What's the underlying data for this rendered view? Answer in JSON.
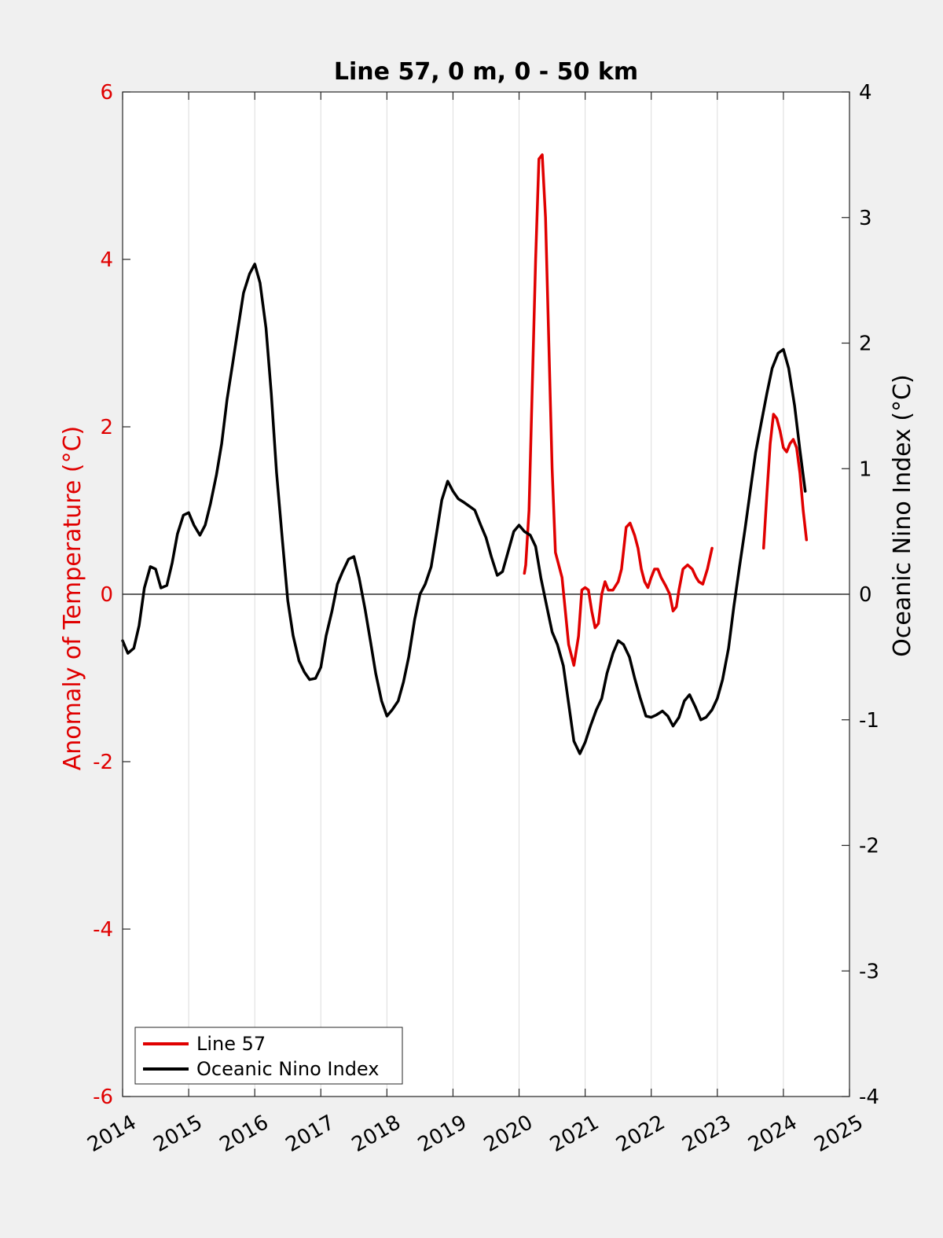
{
  "chart_data": {
    "type": "line",
    "title": "Line 57, 0 m, 0 - 50 km",
    "xlim": [
      2014,
      2025
    ],
    "x_ticks": [
      "2014",
      "2015",
      "2016",
      "2017",
      "2018",
      "2019",
      "2020",
      "2021",
      "2022",
      "2023",
      "2024",
      "2025"
    ],
    "left_axis": {
      "label": "Anomaly of Temperature (°C)",
      "ylim": [
        -6,
        6
      ],
      "ticks": [
        "-6",
        "-4",
        "-2",
        "0",
        "2",
        "4",
        "6"
      ],
      "color": "#e00000"
    },
    "right_axis": {
      "label": "Oceanic Nino Index (°C)",
      "ylim": [
        -4,
        4
      ],
      "ticks": [
        "-4",
        "-3",
        "-2",
        "-1",
        "0",
        "1",
        "2",
        "3",
        "4"
      ],
      "color": "#000000"
    },
    "grid": "vertical",
    "zero_line": true,
    "legend": {
      "position": "bottom-left",
      "entries": [
        {
          "label": "Line 57",
          "color": "#e00000"
        },
        {
          "label": "Oceanic Nino Index",
          "color": "#000000"
        }
      ]
    },
    "series": [
      {
        "name": "Line 57",
        "axis": "left",
        "color": "#e00000",
        "segments": [
          [
            [
              2020.08,
              0.25
            ],
            [
              2020.1,
              0.35
            ],
            [
              2020.15,
              1.0
            ],
            [
              2020.2,
              2.5
            ],
            [
              2020.25,
              4.0
            ],
            [
              2020.3,
              5.2
            ],
            [
              2020.35,
              5.25
            ],
            [
              2020.4,
              4.5
            ],
            [
              2020.45,
              3.0
            ],
            [
              2020.5,
              1.5
            ],
            [
              2020.55,
              0.5
            ],
            [
              2020.6,
              0.35
            ],
            [
              2020.65,
              0.2
            ],
            [
              2020.7,
              -0.2
            ],
            [
              2020.75,
              -0.6
            ],
            [
              2020.83,
              -0.85
            ],
            [
              2020.9,
              -0.5
            ],
            [
              2020.95,
              0.05
            ],
            [
              2021.0,
              0.08
            ],
            [
              2021.05,
              0.05
            ],
            [
              2021.1,
              -0.2
            ],
            [
              2021.15,
              -0.4
            ],
            [
              2021.2,
              -0.35
            ],
            [
              2021.25,
              0.0
            ],
            [
              2021.3,
              0.15
            ],
            [
              2021.35,
              0.05
            ],
            [
              2021.42,
              0.05
            ],
            [
              2021.5,
              0.15
            ],
            [
              2021.55,
              0.3
            ],
            [
              2021.62,
              0.8
            ],
            [
              2021.68,
              0.85
            ],
            [
              2021.75,
              0.7
            ],
            [
              2021.8,
              0.55
            ],
            [
              2021.85,
              0.3
            ],
            [
              2021.9,
              0.15
            ],
            [
              2021.95,
              0.08
            ],
            [
              2022.0,
              0.2
            ],
            [
              2022.05,
              0.3
            ],
            [
              2022.1,
              0.3
            ],
            [
              2022.15,
              0.2
            ],
            [
              2022.22,
              0.1
            ],
            [
              2022.28,
              0.0
            ],
            [
              2022.33,
              -0.2
            ],
            [
              2022.38,
              -0.15
            ],
            [
              2022.42,
              0.05
            ],
            [
              2022.48,
              0.3
            ],
            [
              2022.55,
              0.35
            ],
            [
              2022.62,
              0.3
            ],
            [
              2022.68,
              0.2
            ],
            [
              2022.72,
              0.15
            ],
            [
              2022.78,
              0.12
            ],
            [
              2022.85,
              0.3
            ],
            [
              2022.92,
              0.55
            ]
          ],
          [
            [
              2023.7,
              0.55
            ],
            [
              2023.75,
              1.2
            ],
            [
              2023.8,
              1.8
            ],
            [
              2023.85,
              2.15
            ],
            [
              2023.9,
              2.1
            ],
            [
              2023.95,
              1.95
            ],
            [
              2024.0,
              1.75
            ],
            [
              2024.05,
              1.7
            ],
            [
              2024.1,
              1.8
            ],
            [
              2024.15,
              1.85
            ],
            [
              2024.2,
              1.75
            ],
            [
              2024.25,
              1.45
            ],
            [
              2024.3,
              1.0
            ],
            [
              2024.35,
              0.65
            ]
          ]
        ]
      },
      {
        "name": "Oceanic Nino Index",
        "axis": "right",
        "color": "#000000",
        "points": [
          [
            2014.0,
            -0.37
          ],
          [
            2014.08,
            -0.47
          ],
          [
            2014.17,
            -0.43
          ],
          [
            2014.25,
            -0.25
          ],
          [
            2014.33,
            0.05
          ],
          [
            2014.42,
            0.22
          ],
          [
            2014.5,
            0.2
          ],
          [
            2014.58,
            0.05
          ],
          [
            2014.67,
            0.07
          ],
          [
            2014.75,
            0.25
          ],
          [
            2014.83,
            0.48
          ],
          [
            2014.92,
            0.63
          ],
          [
            2015.0,
            0.65
          ],
          [
            2015.08,
            0.55
          ],
          [
            2015.17,
            0.47
          ],
          [
            2015.25,
            0.55
          ],
          [
            2015.33,
            0.72
          ],
          [
            2015.42,
            0.95
          ],
          [
            2015.5,
            1.2
          ],
          [
            2015.58,
            1.55
          ],
          [
            2015.67,
            1.85
          ],
          [
            2015.75,
            2.13
          ],
          [
            2015.83,
            2.4
          ],
          [
            2015.92,
            2.55
          ],
          [
            2016.0,
            2.63
          ],
          [
            2016.08,
            2.48
          ],
          [
            2016.17,
            2.12
          ],
          [
            2016.25,
            1.6
          ],
          [
            2016.33,
            0.97
          ],
          [
            2016.42,
            0.42
          ],
          [
            2016.5,
            -0.05
          ],
          [
            2016.58,
            -0.33
          ],
          [
            2016.67,
            -0.53
          ],
          [
            2016.75,
            -0.62
          ],
          [
            2016.83,
            -0.68
          ],
          [
            2016.92,
            -0.67
          ],
          [
            2017.0,
            -0.58
          ],
          [
            2017.08,
            -0.33
          ],
          [
            2017.17,
            -0.13
          ],
          [
            2017.25,
            0.08
          ],
          [
            2017.33,
            0.18
          ],
          [
            2017.42,
            0.28
          ],
          [
            2017.5,
            0.3
          ],
          [
            2017.58,
            0.13
          ],
          [
            2017.67,
            -0.12
          ],
          [
            2017.75,
            -0.37
          ],
          [
            2017.83,
            -0.63
          ],
          [
            2017.92,
            -0.85
          ],
          [
            2018.0,
            -0.97
          ],
          [
            2018.08,
            -0.92
          ],
          [
            2018.17,
            -0.85
          ],
          [
            2018.25,
            -0.7
          ],
          [
            2018.33,
            -0.5
          ],
          [
            2018.42,
            -0.2
          ],
          [
            2018.5,
            0.0
          ],
          [
            2018.58,
            0.08
          ],
          [
            2018.67,
            0.22
          ],
          [
            2018.75,
            0.48
          ],
          [
            2018.83,
            0.75
          ],
          [
            2018.92,
            0.9
          ],
          [
            2019.0,
            0.82
          ],
          [
            2019.08,
            0.76
          ],
          [
            2019.17,
            0.73
          ],
          [
            2019.25,
            0.7
          ],
          [
            2019.33,
            0.67
          ],
          [
            2019.42,
            0.55
          ],
          [
            2019.5,
            0.45
          ],
          [
            2019.58,
            0.3
          ],
          [
            2019.67,
            0.15
          ],
          [
            2019.75,
            0.18
          ],
          [
            2019.83,
            0.33
          ],
          [
            2019.92,
            0.5
          ],
          [
            2020.0,
            0.55
          ],
          [
            2020.08,
            0.5
          ],
          [
            2020.17,
            0.47
          ],
          [
            2020.25,
            0.38
          ],
          [
            2020.33,
            0.13
          ],
          [
            2020.42,
            -0.1
          ],
          [
            2020.5,
            -0.3
          ],
          [
            2020.58,
            -0.4
          ],
          [
            2020.67,
            -0.57
          ],
          [
            2020.75,
            -0.87
          ],
          [
            2020.83,
            -1.17
          ],
          [
            2020.92,
            -1.27
          ],
          [
            2021.0,
            -1.18
          ],
          [
            2021.08,
            -1.05
          ],
          [
            2021.17,
            -0.92
          ],
          [
            2021.25,
            -0.83
          ],
          [
            2021.33,
            -0.63
          ],
          [
            2021.42,
            -0.47
          ],
          [
            2021.5,
            -0.37
          ],
          [
            2021.58,
            -0.4
          ],
          [
            2021.67,
            -0.5
          ],
          [
            2021.75,
            -0.67
          ],
          [
            2021.83,
            -0.82
          ],
          [
            2021.92,
            -0.97
          ],
          [
            2022.0,
            -0.98
          ],
          [
            2022.08,
            -0.96
          ],
          [
            2022.17,
            -0.93
          ],
          [
            2022.25,
            -0.97
          ],
          [
            2022.33,
            -1.05
          ],
          [
            2022.42,
            -0.98
          ],
          [
            2022.5,
            -0.85
          ],
          [
            2022.58,
            -0.8
          ],
          [
            2022.67,
            -0.9
          ],
          [
            2022.75,
            -1.0
          ],
          [
            2022.83,
            -0.98
          ],
          [
            2022.92,
            -0.92
          ],
          [
            2023.0,
            -0.83
          ],
          [
            2023.08,
            -0.68
          ],
          [
            2023.17,
            -0.43
          ],
          [
            2023.25,
            -0.1
          ],
          [
            2023.33,
            0.2
          ],
          [
            2023.42,
            0.52
          ],
          [
            2023.5,
            0.83
          ],
          [
            2023.58,
            1.13
          ],
          [
            2023.67,
            1.38
          ],
          [
            2023.75,
            1.6
          ],
          [
            2023.83,
            1.8
          ],
          [
            2023.92,
            1.92
          ],
          [
            2024.0,
            1.95
          ],
          [
            2024.08,
            1.8
          ],
          [
            2024.17,
            1.5
          ],
          [
            2024.25,
            1.15
          ],
          [
            2024.33,
            0.82
          ]
        ]
      }
    ]
  }
}
